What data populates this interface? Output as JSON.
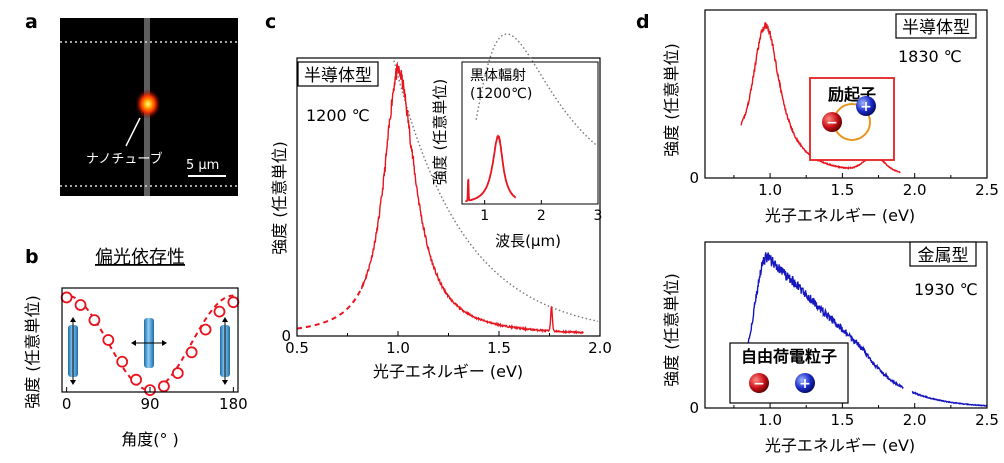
{
  "panel_labels": {
    "a": "a",
    "b": "b",
    "c": "c",
    "d": "d"
  },
  "colors": {
    "red": "#e8141e",
    "blue": "#1717c0",
    "gray": "#777777",
    "tube": "#3a8fce",
    "box_red": "#e52020"
  },
  "panel_a": {
    "label": "ナノチューブ",
    "scalebar": "5 μm"
  },
  "chart_data": [
    {
      "id": "b",
      "type": "scatter",
      "title": "偏光依存性",
      "xlabel": "角度(°  )",
      "ylabel": "強度 (任意単位)",
      "xlim": [
        -5,
        185
      ],
      "ylim": [
        0,
        1.1
      ],
      "xticks": [
        "0",
        "90",
        "180"
      ],
      "xtick_values": [
        0,
        90,
        180
      ],
      "series": [
        {
          "style": "circles",
          "x": [
            0,
            15,
            30,
            45,
            60,
            75,
            90,
            105,
            120,
            135,
            150,
            165,
            180
          ],
          "y": [
            1.0,
            0.92,
            0.76,
            0.55,
            0.32,
            0.13,
            0.02,
            0.06,
            0.2,
            0.42,
            0.66,
            0.85,
            0.95
          ]
        },
        {
          "style": "dashed-fit",
          "function": "cos^2",
          "amplitude": 1.0,
          "offset": 0.02
        }
      ]
    },
    {
      "id": "c",
      "type": "line",
      "xlabel": "光子エネルギー (eV)",
      "ylabel": "強度 (任意単位)",
      "xlim": [
        0.5,
        2.0
      ],
      "ylim": [
        0,
        1.05
      ],
      "xticks": [
        "0.5",
        "1.0",
        "1.5",
        "2.0"
      ],
      "xtick_values": [
        0.5,
        1.0,
        1.5,
        2.0
      ],
      "yticks": [
        "0"
      ],
      "ytick_values": [
        0
      ],
      "annotations": {
        "type_label": "半導体型",
        "temperature": "1200 ℃"
      },
      "series": [
        {
          "style": "solid-noisy",
          "peak_x": 1.0,
          "peak_y": 1.0,
          "x_range": [
            0.82,
            1.92
          ],
          "side_peak": {
            "x": 1.76,
            "y": 0.09
          }
        },
        {
          "style": "dashed-fit",
          "x_range": [
            0.5,
            0.82
          ]
        },
        {
          "style": "dotted-blackbody",
          "x_range": [
            0.98,
            2.0
          ]
        }
      ],
      "inset": {
        "xlabel": "波長(μm)",
        "ylabel": "強度 (任意単位)",
        "xlim": [
          0.6,
          3.0
        ],
        "ylim": [
          0,
          1.05
        ],
        "xticks": [
          "1",
          "2",
          "3"
        ],
        "xtick_values": [
          1,
          2,
          3
        ],
        "legend_text": [
          "黒体輻射",
          "(1200℃)"
        ],
        "series": [
          {
            "style": "dotted-blackbody",
            "peak_x": 2.0
          },
          {
            "style": "solid-peak",
            "peak_x": 1.24,
            "peak_y": 0.5
          }
        ]
      }
    },
    {
      "id": "d-top",
      "type": "line",
      "xlabel": "光子エネルギー (eV)",
      "ylabel": "強度 (任意単位)",
      "xlim": [
        0.55,
        2.5
      ],
      "ylim": [
        0,
        1.1
      ],
      "xticks": [
        "1.0",
        "1.5",
        "2.0",
        "2.5"
      ],
      "xtick_values": [
        1.0,
        1.5,
        2.0,
        2.5
      ],
      "yticks": [
        "0"
      ],
      "ytick_values": [
        0
      ],
      "annotations": {
        "type_label": "半導体型",
        "temperature": "1830 ℃",
        "box_title": "励起子",
        "minus": "−",
        "plus": "+"
      },
      "series": [
        {
          "style": "solid-noisy",
          "x_range": [
            0.8,
            1.9
          ],
          "peak_x": 0.97,
          "peak_y": 1.0,
          "shoulder": {
            "x": 1.72,
            "y": 0.1
          }
        }
      ]
    },
    {
      "id": "d-bottom",
      "type": "line",
      "xlabel": "光子エネルギー (eV)",
      "ylabel": "強度 (任意単位)",
      "xlim": [
        0.55,
        2.5
      ],
      "ylim": [
        0,
        1.1
      ],
      "xticks": [
        "1.0",
        "1.5",
        "2.0",
        "2.5"
      ],
      "xtick_values": [
        1.0,
        1.5,
        2.0,
        2.5
      ],
      "yticks": [
        "0"
      ],
      "ytick_values": [
        0
      ],
      "annotations": {
        "type_label": "金属型",
        "temperature": "1930 ℃",
        "box_title": "自由荷電粒子",
        "minus": "−",
        "plus": "+"
      },
      "series": [
        {
          "style": "solid-noisy",
          "x_range": [
            0.75,
            2.5
          ],
          "peak_x": 0.98,
          "peak_y": 1.0,
          "gap": [
            1.92,
            1.98
          ]
        }
      ]
    }
  ]
}
